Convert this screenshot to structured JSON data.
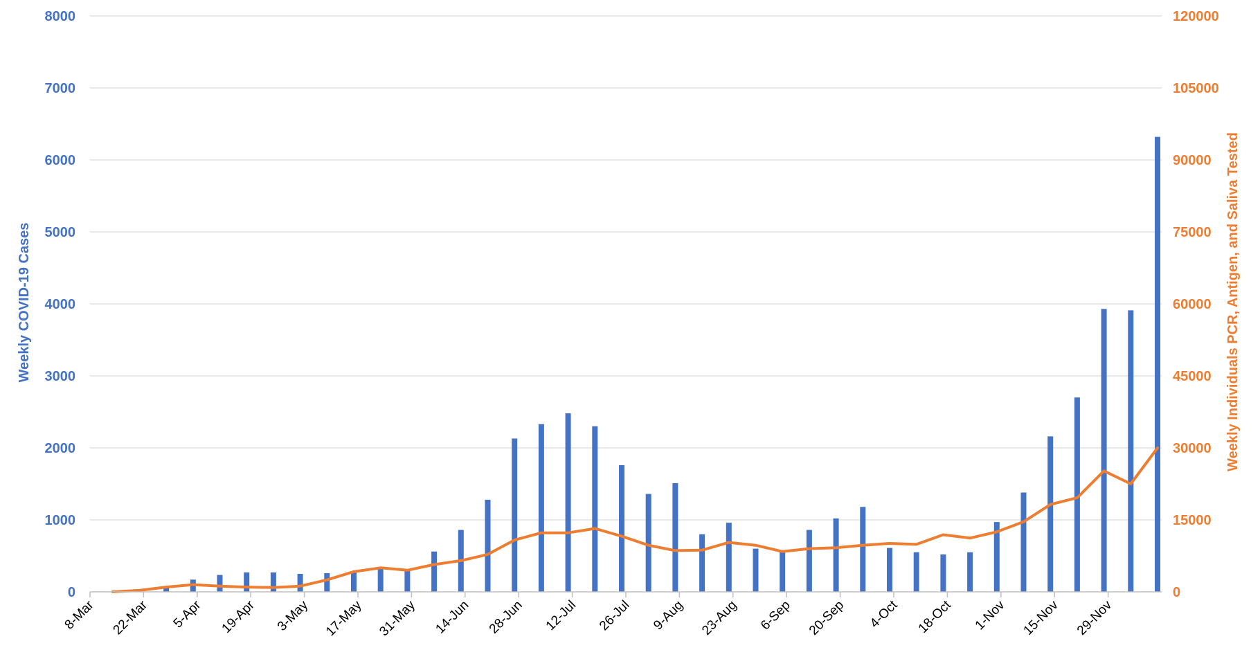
{
  "colors": {
    "bars": "#4472C4",
    "line": "#ED7D31",
    "grid": "#D9D9D9",
    "axis": "#BFBFBF"
  },
  "chart_data": {
    "type": "bar",
    "secondary_type": "line",
    "title": "",
    "ylabel": "Weekly COVID-19 Cases",
    "y2label": "Weekly Individuals PCR, Antigen, and Saliva Tested",
    "ylim": [
      0,
      8000
    ],
    "y2lim": [
      0,
      120000
    ],
    "yticks": [
      "0",
      "1000",
      "2000",
      "3000",
      "4000",
      "5000",
      "6000",
      "7000",
      "8000"
    ],
    "y2ticks": [
      "0",
      "15000",
      "30000",
      "45000",
      "60000",
      "75000",
      "90000",
      "105000",
      "120000"
    ],
    "grid": true,
    "legend": "none",
    "tick_labels": [
      "8-Mar",
      "22-Mar",
      "5-Apr",
      "19-Apr",
      "3-May",
      "17-May",
      "31-May",
      "14-Jun",
      "28-Jun",
      "12-Jul",
      "26-Jul",
      "9-Aug",
      "23-Aug",
      "6-Sep",
      "20-Sep",
      "4-Oct",
      "18-Oct",
      "1-Nov",
      "15-Nov",
      "29-Nov"
    ],
    "tick_every": 2,
    "categories": [
      "8-Mar",
      "15-Mar",
      "22-Mar",
      "29-Mar",
      "5-Apr",
      "12-Apr",
      "19-Apr",
      "26-Apr",
      "3-May",
      "10-May",
      "17-May",
      "24-May",
      "31-May",
      "7-Jun",
      "14-Jun",
      "21-Jun",
      "28-Jun",
      "5-Jul",
      "12-Jul",
      "19-Jul",
      "26-Jul",
      "2-Aug",
      "9-Aug",
      "16-Aug",
      "23-Aug",
      "30-Aug",
      "6-Sep",
      "13-Sep",
      "20-Sep",
      "27-Sep",
      "4-Oct",
      "11-Oct",
      "18-Oct",
      "25-Oct",
      "1-Nov",
      "8-Nov",
      "15-Nov",
      "22-Nov",
      "29-Nov",
      "6-Dec"
    ],
    "series": [
      {
        "type": "bar",
        "axis": "left",
        "values": [
          5,
          20,
          55,
          170,
          235,
          270,
          270,
          250,
          260,
          280,
          320,
          310,
          560,
          860,
          1280,
          2130,
          2330,
          2480,
          2300,
          1760,
          1360,
          1510,
          800,
          960,
          600,
          580,
          860,
          1020,
          1180,
          610,
          550,
          520,
          550,
          970,
          1380,
          2160,
          2700,
          3930,
          3910,
          6320
        ]
      },
      {
        "type": "line",
        "axis": "right",
        "values": [
          0,
          300,
          1000,
          1500,
          1200,
          1000,
          900,
          1200,
          2500,
          4200,
          5000,
          4500,
          5700,
          6500,
          7800,
          10800,
          12300,
          12300,
          13200,
          11600,
          9700,
          8600,
          8700,
          10300,
          9700,
          8400,
          9000,
          9200,
          9700,
          10100,
          9900,
          11900,
          11200,
          12500,
          14600,
          18200,
          19600,
          25200,
          22500,
          30000
        ]
      }
    ]
  }
}
